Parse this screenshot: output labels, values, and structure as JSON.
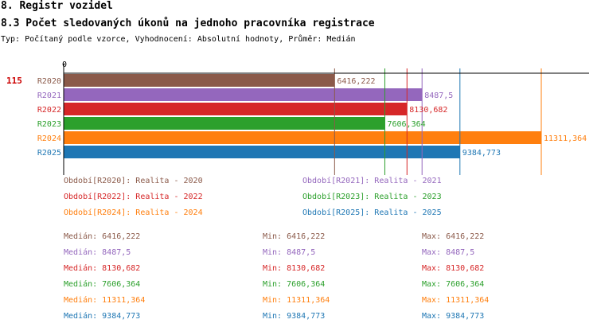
{
  "header": {
    "title": "8. Registr vozidel",
    "subtitle": "8.3 Počet sledovaných úkonů na jednoho pracovníka registrace",
    "type_line": "Typ: Počítaný podle vzorce, Vyhodnocení: Absolutní hodnoty, Průměr: Medián"
  },
  "chart_data": {
    "type": "bar",
    "orientation": "horizontal",
    "axis_zero_label": "0",
    "row_marker": "115",
    "xlim": [
      0,
      11311.364
    ],
    "categories": [
      "R2020",
      "R2021",
      "R2022",
      "R2023",
      "R2024",
      "R2025"
    ],
    "values": [
      6416.222,
      8487.5,
      8130.682,
      7606.364,
      11311.364,
      9384.773
    ],
    "value_labels": [
      "6416,222",
      "8487,5",
      "8130,682",
      "7606,364",
      "11311,364",
      "9384,773"
    ],
    "colors": [
      "#8b5a4a",
      "#9467bd",
      "#d62728",
      "#2ca02c",
      "#ff7f0e",
      "#1f77b4"
    ]
  },
  "legend": [
    {
      "text": "Období[R2020]: Realita - 2020",
      "color": "#8b5a4a"
    },
    {
      "text": "Období[R2021]: Realita - 2021",
      "color": "#9467bd"
    },
    {
      "text": "Období[R2022]: Realita - 2022",
      "color": "#d62728"
    },
    {
      "text": "Období[R2023]: Realita - 2023",
      "color": "#2ca02c"
    },
    {
      "text": "Období[R2024]: Realita - 2024",
      "color": "#ff7f0e"
    },
    {
      "text": "Období[R2025]: Realita - 2025",
      "color": "#1f77b4"
    }
  ],
  "stats": [
    {
      "median": "Medián: 6416,222",
      "min": "Min: 6416,222",
      "max": "Max: 6416,222",
      "color": "#8b5a4a"
    },
    {
      "median": "Medián: 8487,5",
      "min": "Min: 8487,5",
      "max": "Max: 8487,5",
      "color": "#9467bd"
    },
    {
      "median": "Medián: 8130,682",
      "min": "Min: 8130,682",
      "max": "Max: 8130,682",
      "color": "#d62728"
    },
    {
      "median": "Medián: 7606,364",
      "min": "Min: 7606,364",
      "max": "Max: 7606,364",
      "color": "#2ca02c"
    },
    {
      "median": "Medián: 11311,364",
      "min": "Min: 11311,364",
      "max": "Max: 11311,364",
      "color": "#ff7f0e"
    },
    {
      "median": "Medián: 9384,773",
      "min": "Min: 9384,773",
      "max": "Max: 9384,773",
      "color": "#1f77b4"
    }
  ]
}
